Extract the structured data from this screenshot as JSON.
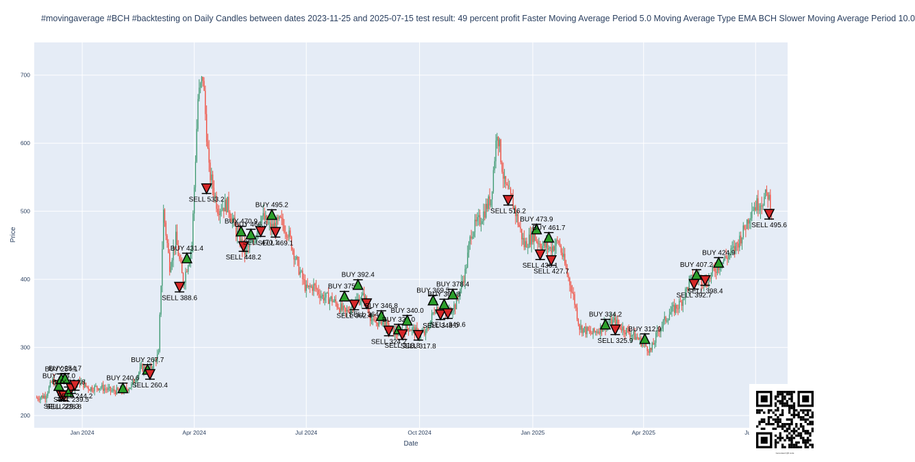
{
  "title": "#movingaverage #BCH #backtesting on Daily Candles between dates 2023-11-25 and 2025-07-15 test result: 49 percent profit Faster Moving Average Period 5.0 Moving Average Type EMA  BCH Slower Moving Average Period 10.0",
  "qr_caption": "Generated QR code",
  "chart_data": {
    "type": "candlestick",
    "xlabel": "Date",
    "ylabel": "Price",
    "x_range": [
      "2023-11-23",
      "2025-07-27"
    ],
    "ylim": [
      182,
      748
    ],
    "y_ticks": [
      200,
      300,
      400,
      500,
      600,
      700
    ],
    "x_ticks": [
      {
        "date": "2024-01-01",
        "label": "Jan 2024"
      },
      {
        "date": "2024-04-01",
        "label": "Apr 2024"
      },
      {
        "date": "2024-07-01",
        "label": "Jul 2024"
      },
      {
        "date": "2024-10-01",
        "label": "Oct 2024"
      },
      {
        "date": "2025-01-01",
        "label": "Jan 2025"
      },
      {
        "date": "2025-04-01",
        "label": "Apr 2025"
      },
      {
        "date": "2025-07-01",
        "label": "Jul 2025"
      }
    ],
    "grid": true,
    "colors": {
      "up": "#3d9970",
      "down": "#ef4b3c",
      "buy": "#2ca02c",
      "sell": "#d62728",
      "plot_bg": "#e5ecf6"
    },
    "price_path": [
      [
        "2023-11-25",
        226
      ],
      [
        "2023-12-02",
        229
      ],
      [
        "2023-12-08",
        252
      ],
      [
        "2023-12-13",
        236
      ],
      [
        "2023-12-19",
        228
      ],
      [
        "2023-12-24",
        244
      ],
      [
        "2023-12-30",
        249
      ],
      [
        "2024-01-07",
        240
      ],
      [
        "2024-01-15",
        242
      ],
      [
        "2024-01-25",
        236
      ],
      [
        "2024-02-03",
        236
      ],
      [
        "2024-02-10",
        244
      ],
      [
        "2024-02-18",
        270
      ],
      [
        "2024-02-25",
        268
      ],
      [
        "2024-03-03",
        290
      ],
      [
        "2024-03-07",
        500
      ],
      [
        "2024-03-12",
        420
      ],
      [
        "2024-03-17",
        460
      ],
      [
        "2024-03-23",
        395
      ],
      [
        "2024-03-30",
        450
      ],
      [
        "2024-04-04",
        665
      ],
      [
        "2024-04-08",
        698
      ],
      [
        "2024-04-13",
        560
      ],
      [
        "2024-04-20",
        505
      ],
      [
        "2024-04-28",
        510
      ],
      [
        "2024-05-05",
        470
      ],
      [
        "2024-05-12",
        440
      ],
      [
        "2024-05-19",
        455
      ],
      [
        "2024-05-25",
        495
      ],
      [
        "2024-06-02",
        475
      ],
      [
        "2024-06-10",
        485
      ],
      [
        "2024-06-16",
        470
      ],
      [
        "2024-06-24",
        420
      ],
      [
        "2024-07-01",
        385
      ],
      [
        "2024-07-07",
        390
      ],
      [
        "2024-07-14",
        375
      ],
      [
        "2024-07-22",
        370
      ],
      [
        "2024-08-02",
        350
      ],
      [
        "2024-08-08",
        365
      ],
      [
        "2024-08-17",
        375
      ],
      [
        "2024-08-24",
        335
      ],
      [
        "2024-08-31",
        340
      ],
      [
        "2024-09-07",
        325
      ],
      [
        "2024-09-14",
        320
      ],
      [
        "2024-09-22",
        330
      ],
      [
        "2024-09-30",
        320
      ],
      [
        "2024-10-06",
        320
      ],
      [
        "2024-10-14",
        360
      ],
      [
        "2024-10-22",
        350
      ],
      [
        "2024-10-30",
        362
      ],
      [
        "2024-11-07",
        410
      ],
      [
        "2024-11-12",
        470
      ],
      [
        "2024-11-20",
        490
      ],
      [
        "2024-11-28",
        520
      ],
      [
        "2024-12-03",
        620
      ],
      [
        "2024-12-09",
        540
      ],
      [
        "2024-12-17",
        505
      ],
      [
        "2024-12-25",
        450
      ],
      [
        "2025-01-01",
        465
      ],
      [
        "2025-01-08",
        450
      ],
      [
        "2025-01-15",
        445
      ],
      [
        "2025-01-22",
        455
      ],
      [
        "2025-02-03",
        375
      ],
      [
        "2025-02-08",
        330
      ],
      [
        "2025-02-18",
        320
      ],
      [
        "2025-02-28",
        332
      ],
      [
        "2025-03-08",
        338
      ],
      [
        "2025-03-15",
        328
      ],
      [
        "2025-03-22",
        320
      ],
      [
        "2025-03-28",
        312
      ],
      [
        "2025-04-07",
        295
      ],
      [
        "2025-04-13",
        325
      ],
      [
        "2025-04-22",
        350
      ],
      [
        "2025-05-01",
        365
      ],
      [
        "2025-05-09",
        398
      ],
      [
        "2025-05-15",
        404
      ],
      [
        "2025-05-22",
        395
      ],
      [
        "2025-05-29",
        415
      ],
      [
        "2025-06-06",
        430
      ],
      [
        "2025-06-14",
        445
      ],
      [
        "2025-06-21",
        470
      ],
      [
        "2025-06-28",
        505
      ],
      [
        "2025-07-06",
        515
      ],
      [
        "2025-07-11",
        525
      ],
      [
        "2025-07-15",
        495
      ]
    ],
    "trades": [
      {
        "type": "BUY",
        "date": "2023-12-13",
        "price": 244.0,
        "label": "BUY 244.0"
      },
      {
        "type": "BUY",
        "date": "2023-12-15",
        "price": 254.1,
        "label": "BUY 254.1"
      },
      {
        "type": "SELL",
        "date": "2023-12-15",
        "price": 229.3,
        "label": "SELL 229.3"
      },
      {
        "type": "BUY",
        "date": "2023-12-18",
        "price": 254.7,
        "label": "BUY 254.7"
      },
      {
        "type": "SELL",
        "date": "2023-12-17",
        "price": 228.8,
        "label": "SELL 228.8"
      },
      {
        "type": "BUY",
        "date": "2023-12-21",
        "price": 234.8,
        "label": "BUY 234.8"
      },
      {
        "type": "SELL",
        "date": "2023-12-23",
        "price": 239.5,
        "label": "SELL 239.5"
      },
      {
        "type": "SELL",
        "date": "2023-12-26",
        "price": 244.2,
        "label": "SELL 244.2"
      },
      {
        "type": "BUY",
        "date": "2024-02-03",
        "price": 240.6,
        "label": "BUY 240.6"
      },
      {
        "type": "BUY",
        "date": "2024-02-23",
        "price": 267.7,
        "label": "BUY 267.7"
      },
      {
        "type": "SELL",
        "date": "2024-02-25",
        "price": 260.4,
        "label": "SELL 260.4"
      },
      {
        "type": "SELL",
        "date": "2024-03-20",
        "price": 388.6,
        "label": "SELL 388.6"
      },
      {
        "type": "BUY",
        "date": "2024-03-26",
        "price": 431.4,
        "label": "BUY 431.4"
      },
      {
        "type": "SELL",
        "date": "2024-04-11",
        "price": 533.2,
        "label": "SELL 533.2"
      },
      {
        "type": "BUY",
        "date": "2024-05-09",
        "price": 470.9,
        "label": "BUY 470.9"
      },
      {
        "type": "SELL",
        "date": "2024-05-11",
        "price": 448.2,
        "label": "SELL 448.2"
      },
      {
        "type": "BUY",
        "date": "2024-05-17",
        "price": 466.5,
        "label": "BUY 466.5"
      },
      {
        "type": "SELL",
        "date": "2024-05-25",
        "price": 470.1,
        "label": "SELL 470.1"
      },
      {
        "type": "BUY",
        "date": "2024-06-03",
        "price": 495.2,
        "label": "BUY 495.2"
      },
      {
        "type": "SELL",
        "date": "2024-06-06",
        "price": 469.1,
        "label": "SELL 469.1"
      },
      {
        "type": "BUY",
        "date": "2024-08-01",
        "price": 375.3,
        "label": "BUY 375.3"
      },
      {
        "type": "SELL",
        "date": "2024-08-09",
        "price": 362.4,
        "label": "SELL 362.4"
      },
      {
        "type": "BUY",
        "date": "2024-08-12",
        "price": 392.4,
        "label": "BUY 392.4"
      },
      {
        "type": "SELL",
        "date": "2024-08-19",
        "price": 364.4,
        "label": "SELL 364.4"
      },
      {
        "type": "BUY",
        "date": "2024-08-31",
        "price": 346.8,
        "label": "BUY 346.8"
      },
      {
        "type": "SELL",
        "date": "2024-09-06",
        "price": 324.2,
        "label": "SELL 324.2"
      },
      {
        "type": "BUY",
        "date": "2024-09-14",
        "price": 327.0,
        "label": "BUY 327.0"
      },
      {
        "type": "SELL",
        "date": "2024-09-17",
        "price": 318.8,
        "label": "SELL 318.8"
      },
      {
        "type": "BUY",
        "date": "2024-09-21",
        "price": 340.0,
        "label": "BUY 340.0"
      },
      {
        "type": "SELL",
        "date": "2024-09-30",
        "price": 317.8,
        "label": "SELL 317.8"
      },
      {
        "type": "BUY",
        "date": "2024-10-12",
        "price": 369.5,
        "label": "BUY 369.5"
      },
      {
        "type": "SELL",
        "date": "2024-10-18",
        "price": 348.0,
        "label": "SELL 348.0"
      },
      {
        "type": "BUY",
        "date": "2024-10-21",
        "price": 363.8,
        "label": "BUY 363.8"
      },
      {
        "type": "SELL",
        "date": "2024-10-24",
        "price": 349.6,
        "label": "SELL 349.6"
      },
      {
        "type": "BUY",
        "date": "2024-10-28",
        "price": 378.4,
        "label": "BUY 378.4"
      },
      {
        "type": "SELL",
        "date": "2024-12-12",
        "price": 516.2,
        "label": "SELL 516.2"
      },
      {
        "type": "BUY",
        "date": "2025-01-04",
        "price": 473.9,
        "label": "BUY 473.9"
      },
      {
        "type": "SELL",
        "date": "2025-01-07",
        "price": 436.1,
        "label": "SELL 436.1"
      },
      {
        "type": "BUY",
        "date": "2025-01-14",
        "price": 461.7,
        "label": "BUY 461.7"
      },
      {
        "type": "SELL",
        "date": "2025-01-16",
        "price": 427.7,
        "label": "SELL 427.7"
      },
      {
        "type": "BUY",
        "date": "2025-03-01",
        "price": 334.2,
        "label": "BUY 334.2"
      },
      {
        "type": "SELL",
        "date": "2025-03-09",
        "price": 325.9,
        "label": "SELL 325.9"
      },
      {
        "type": "BUY",
        "date": "2025-04-02",
        "price": 312.9,
        "label": "BUY 312.9"
      },
      {
        "type": "SELL",
        "date": "2025-05-12",
        "price": 392.7,
        "label": "SELL 392.7"
      },
      {
        "type": "BUY",
        "date": "2025-05-14",
        "price": 407.2,
        "label": "BUY 407.2"
      },
      {
        "type": "SELL",
        "date": "2025-05-21",
        "price": 398.4,
        "label": "SELL 398.4"
      },
      {
        "type": "BUY",
        "date": "2025-06-01",
        "price": 424.9,
        "label": "BUY 424.9"
      },
      {
        "type": "SELL",
        "date": "2025-07-12",
        "price": 495.6,
        "label": "SELL 495.6"
      }
    ]
  }
}
